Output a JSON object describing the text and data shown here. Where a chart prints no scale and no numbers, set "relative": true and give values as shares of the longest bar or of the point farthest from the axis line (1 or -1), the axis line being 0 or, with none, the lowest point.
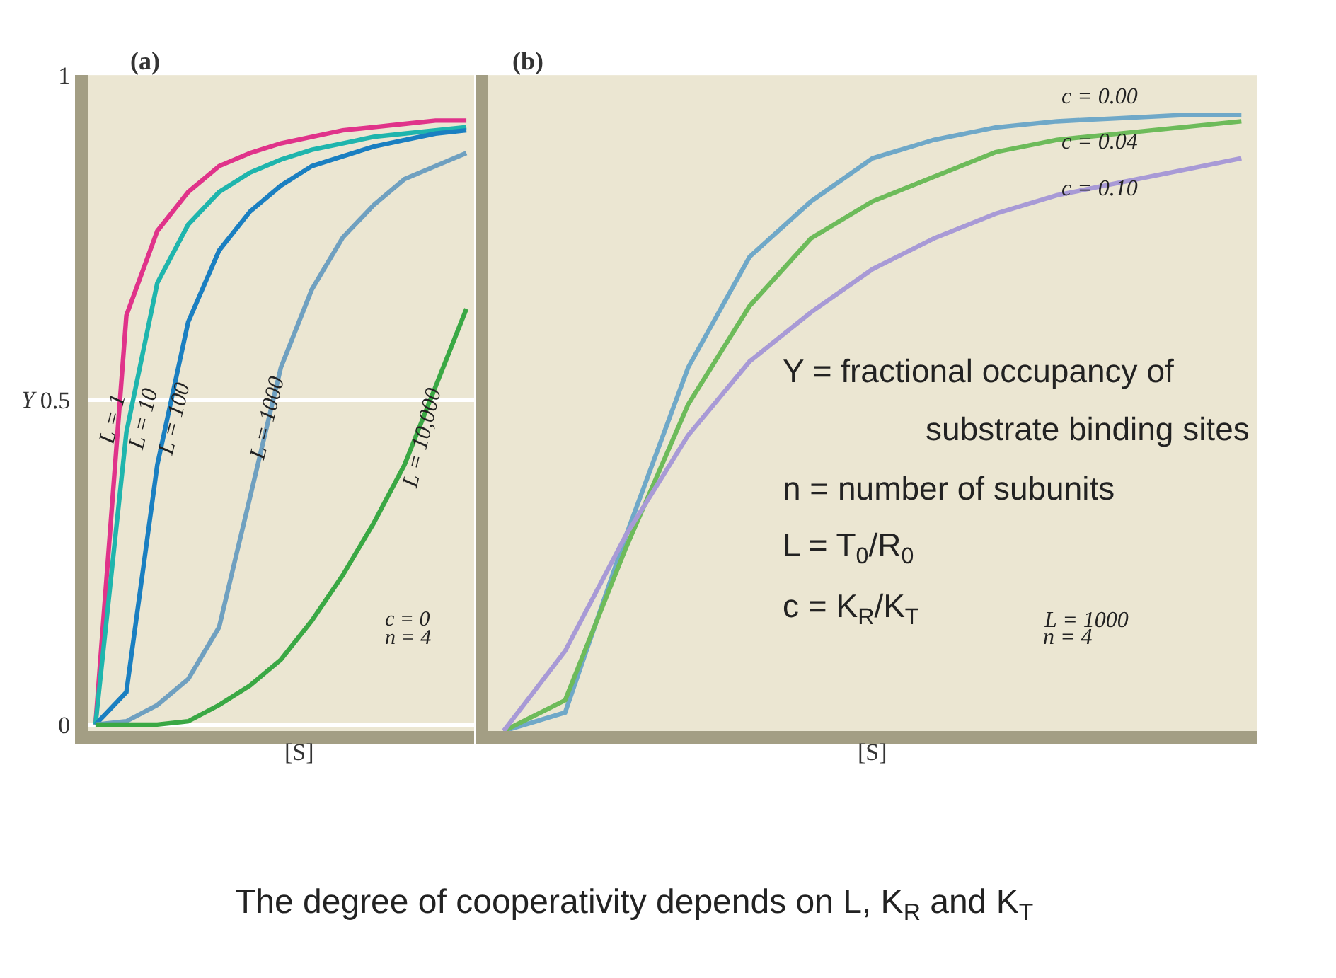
{
  "chart_data": [
    {
      "type": "line",
      "title": "(a)",
      "xlabel": "[S]",
      "ylabel": "Y",
      "categories": [
        null,
        null,
        null,
        null,
        null,
        null,
        null,
        null,
        null,
        null,
        null,
        null,
        null
      ],
      "ylim": [
        0,
        1
      ],
      "yticks": [
        0,
        0.5,
        1
      ],
      "grid": "y",
      "legend": false,
      "tick_labels": "y",
      "marker": "none",
      "line_style": "solid",
      "annotations": [
        "c = 0",
        "n = 4"
      ],
      "series": [
        {
          "name": "L = 1",
          "color": "#e0338a",
          "values": [
            0,
            0.63,
            0.76,
            0.82,
            0.86,
            0.88,
            0.895,
            0.905,
            0.915,
            0.92,
            0.925,
            0.93,
            0.93
          ]
        },
        {
          "name": "L = 10",
          "color": "#1fb5ad",
          "values": [
            0,
            0.45,
            0.68,
            0.77,
            0.82,
            0.85,
            0.87,
            0.885,
            0.895,
            0.905,
            0.91,
            0.915,
            0.92
          ]
        },
        {
          "name": "L = 100",
          "color": "#1a7fc1",
          "values": [
            0,
            0.05,
            0.4,
            0.62,
            0.73,
            0.79,
            0.83,
            0.86,
            0.875,
            0.89,
            0.9,
            0.91,
            0.915
          ]
        },
        {
          "name": "L = 1000",
          "color": "#6fa0c0",
          "values": [
            0,
            0.005,
            0.03,
            0.07,
            0.15,
            0.35,
            0.55,
            0.67,
            0.75,
            0.8,
            0.84,
            0.86,
            0.88
          ]
        },
        {
          "name": "L = 10,000",
          "color": "#3aa844",
          "values": [
            0,
            0,
            0,
            0.005,
            0.03,
            0.06,
            0.1,
            0.16,
            0.23,
            0.31,
            0.4,
            0.52,
            0.64
          ]
        }
      ]
    },
    {
      "type": "line",
      "title": "(b)",
      "xlabel": "[S]",
      "categories": [
        null,
        null,
        null,
        null,
        null,
        null,
        null,
        null,
        null,
        null,
        null,
        null,
        null
      ],
      "relative": true,
      "legend": false,
      "marker": "none",
      "line_style": "solid",
      "annotations": [
        "Y = fractional occupancy of",
        "substrate binding sites",
        "n = number of subunits",
        "L = T$_{0}$/R$_{0}$",
        "c = K$_{R}$/K$_{T}$",
        "L = 1000",
        "n = 4",
        "The degree of cooperativity depends on L, K$_{R}$ and K$_{T}$"
      ],
      "series": [
        {
          "name": "c = 0.00",
          "color": "#6fa8c8",
          "values": [
            0,
            0.03,
            0.32,
            0.59,
            0.77,
            0.86,
            0.93,
            0.96,
            0.98,
            0.99,
            0.995,
            1,
            1
          ]
        },
        {
          "name": "c = 0.04",
          "color": "#6dbb5a",
          "values": [
            0,
            0.05,
            0.3,
            0.53,
            0.69,
            0.8,
            0.86,
            0.9,
            0.94,
            0.96,
            0.97,
            0.98,
            0.99
          ]
        },
        {
          "name": "c = 0.10",
          "color": "#a89ad6",
          "values": [
            0,
            0.13,
            0.32,
            0.48,
            0.6,
            0.68,
            0.75,
            0.8,
            0.84,
            0.87,
            0.89,
            0.91,
            0.93
          ]
        }
      ]
    }
  ]
}
